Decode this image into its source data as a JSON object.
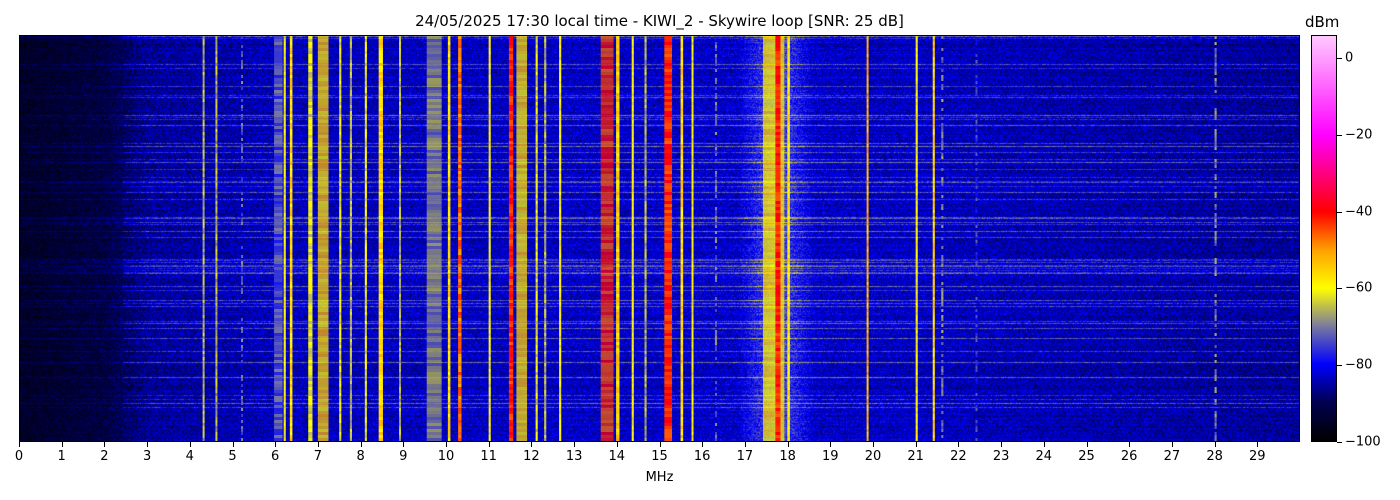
{
  "chart_data": {
    "type": "heatmap",
    "title": "24/05/2025 17:30 local time - KIWI_2 - Skywire loop [SNR: 25 dB]",
    "xlabel": "MHz",
    "xlim": [
      0,
      30
    ],
    "xticks": [
      "0",
      "1",
      "2",
      "3",
      "4",
      "5",
      "6",
      "7",
      "8",
      "9",
      "10",
      "11",
      "12",
      "13",
      "14",
      "15",
      "16",
      "17",
      "18",
      "19",
      "20",
      "21",
      "22",
      "23",
      "24",
      "25",
      "26",
      "27",
      "28",
      "29"
    ],
    "colorbar": {
      "label": "dBm",
      "range": [
        -100,
        6
      ],
      "ticks": [
        "0",
        "−20",
        "−40",
        "−60",
        "−80",
        "−100"
      ],
      "tick_values": [
        0,
        -20,
        -40,
        -60,
        -80,
        -100
      ],
      "colormap": [
        {
          "dbm": -100,
          "color": "#000000"
        },
        {
          "dbm": -90,
          "color": "#000050"
        },
        {
          "dbm": -80,
          "color": "#0000ff"
        },
        {
          "dbm": -70,
          "color": "#7a7aa0"
        },
        {
          "dbm": -60,
          "color": "#ffff00"
        },
        {
          "dbm": -50,
          "color": "#ffa000"
        },
        {
          "dbm": -40,
          "color": "#ff0000"
        },
        {
          "dbm": -20,
          "color": "#ff00ff"
        },
        {
          "dbm": 6,
          "color": "#ffc8ff"
        }
      ]
    },
    "noise_floor_dbm": [
      {
        "mhz": 0,
        "dbm": -95
      },
      {
        "mhz": 2,
        "dbm": -92
      },
      {
        "mhz": 3,
        "dbm": -86
      },
      {
        "mhz": 6,
        "dbm": -84
      },
      {
        "mhz": 16.8,
        "dbm": -83
      },
      {
        "mhz": 17.7,
        "dbm": -72
      },
      {
        "mhz": 18.6,
        "dbm": -83
      },
      {
        "mhz": 30,
        "dbm": -86
      }
    ],
    "signals": [
      {
        "mhz": 4.3,
        "width": 0.04,
        "dbm": -66
      },
      {
        "mhz": 4.6,
        "width": 0.04,
        "dbm": -66
      },
      {
        "mhz": 5.2,
        "width": 0.04,
        "dbm": -72
      },
      {
        "mhz": 6.05,
        "width": 0.2,
        "dbm": -74
      },
      {
        "mhz": 6.2,
        "width": 0.05,
        "dbm": -60
      },
      {
        "mhz": 6.35,
        "width": 0.06,
        "dbm": -56
      },
      {
        "mhz": 6.8,
        "width": 0.1,
        "dbm": -62
      },
      {
        "mhz": 7.1,
        "width": 0.25,
        "dbm": -56
      },
      {
        "mhz": 7.5,
        "width": 0.05,
        "dbm": -62
      },
      {
        "mhz": 7.75,
        "width": 0.05,
        "dbm": -66
      },
      {
        "mhz": 8.1,
        "width": 0.05,
        "dbm": -62
      },
      {
        "mhz": 8.45,
        "width": 0.1,
        "dbm": -56
      },
      {
        "mhz": 8.9,
        "width": 0.04,
        "dbm": -66
      },
      {
        "mhz": 9.7,
        "width": 0.35,
        "dbm": -68
      },
      {
        "mhz": 10.05,
        "width": 0.06,
        "dbm": -56
      },
      {
        "mhz": 10.3,
        "width": 0.08,
        "dbm": -47
      },
      {
        "mhz": 11.0,
        "width": 0.05,
        "dbm": -60
      },
      {
        "mhz": 11.5,
        "width": 0.1,
        "dbm": -42
      },
      {
        "mhz": 11.75,
        "width": 0.25,
        "dbm": -57
      },
      {
        "mhz": 12.1,
        "width": 0.05,
        "dbm": -62
      },
      {
        "mhz": 12.3,
        "width": 0.05,
        "dbm": -66
      },
      {
        "mhz": 12.65,
        "width": 0.05,
        "dbm": -60
      },
      {
        "mhz": 13.75,
        "width": 0.3,
        "dbm": -43
      },
      {
        "mhz": 14.0,
        "width": 0.08,
        "dbm": -55
      },
      {
        "mhz": 14.35,
        "width": 0.05,
        "dbm": -60
      },
      {
        "mhz": 14.65,
        "width": 0.05,
        "dbm": -66
      },
      {
        "mhz": 15.18,
        "width": 0.18,
        "dbm": -42
      },
      {
        "mhz": 15.5,
        "width": 0.06,
        "dbm": -56
      },
      {
        "mhz": 15.75,
        "width": 0.04,
        "dbm": -60
      },
      {
        "mhz": 16.3,
        "width": 0.05,
        "dbm": -72
      },
      {
        "mhz": 17.65,
        "width": 0.5,
        "dbm": -58
      },
      {
        "mhz": 17.75,
        "width": 0.12,
        "dbm": -42
      },
      {
        "mhz": 18.0,
        "width": 0.06,
        "dbm": -58
      },
      {
        "mhz": 19.85,
        "width": 0.04,
        "dbm": -52
      },
      {
        "mhz": 21.0,
        "width": 0.05,
        "dbm": -60
      },
      {
        "mhz": 21.4,
        "width": 0.05,
        "dbm": -55
      },
      {
        "mhz": 21.6,
        "width": 0.05,
        "dbm": -70
      },
      {
        "mhz": 22.4,
        "width": 0.03,
        "dbm": -76
      },
      {
        "mhz": 28.0,
        "width": 0.05,
        "dbm": -70
      }
    ]
  }
}
